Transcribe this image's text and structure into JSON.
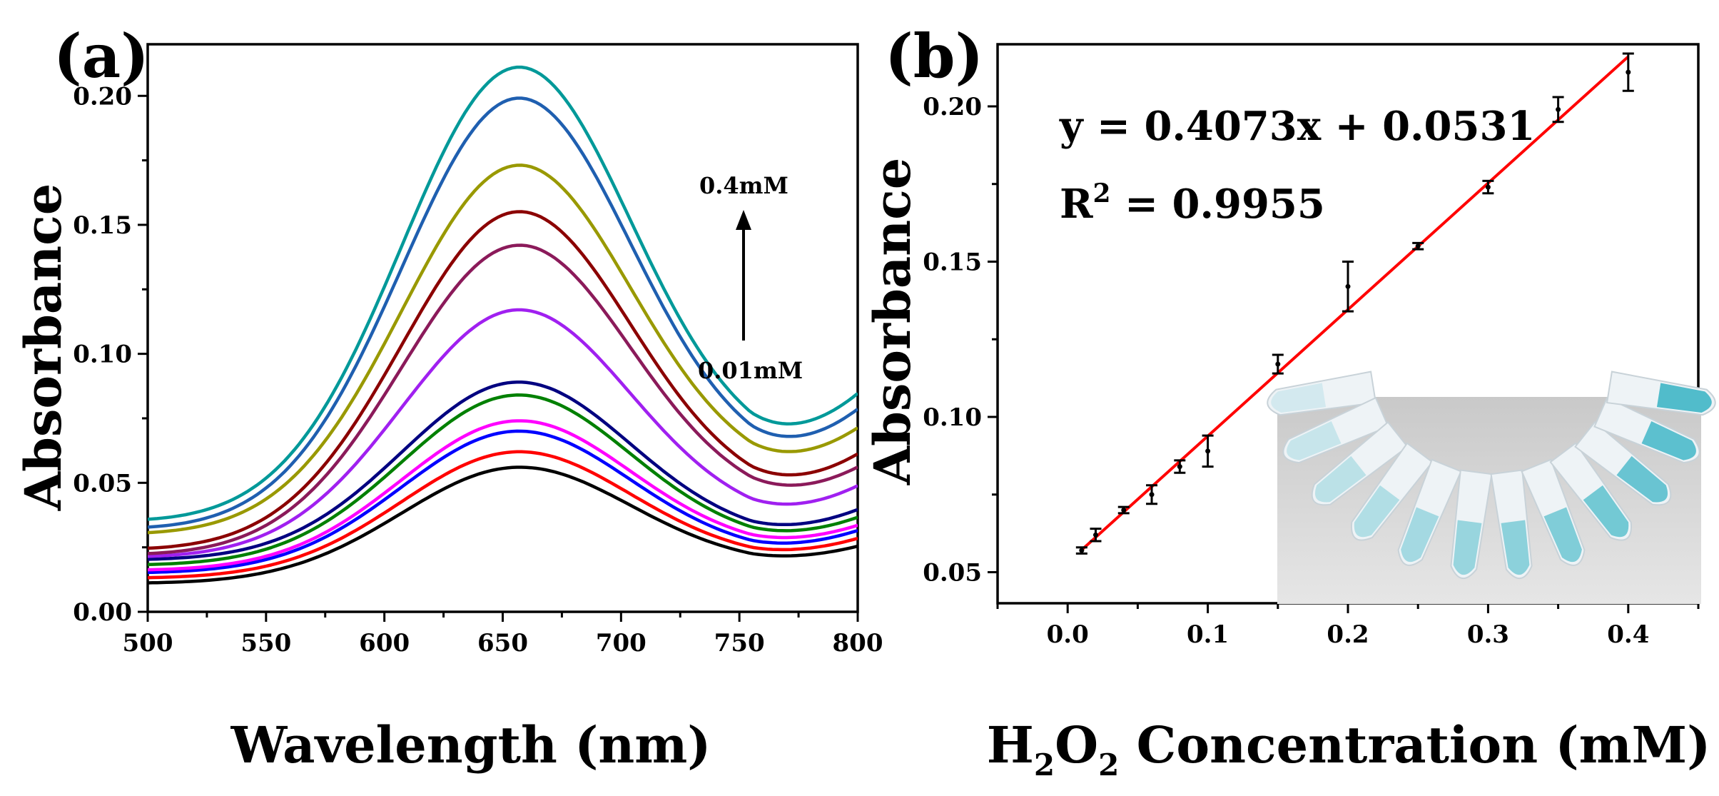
{
  "panels": {
    "a": {
      "label": "(a)",
      "chart_data": {
        "type": "line",
        "title": "",
        "xlabel": "Wavelength (nm)",
        "ylabel": "Absorbance",
        "xlim": [
          500,
          800
        ],
        "ylim": [
          0,
          0.22
        ],
        "x_ticks": [
          "500",
          "550",
          "600",
          "650",
          "700",
          "750",
          "800"
        ],
        "y_ticks": [
          "0.00",
          "0.05",
          "0.10",
          "0.15",
          "0.20"
        ],
        "grid": false,
        "peak_x": 655,
        "min_x": 755,
        "annotations": {
          "top": "0.4mM",
          "bottom": "0.01mM"
        },
        "series": [
          {
            "color": "#000000",
            "points": {
              "500": 0.011,
              "655": 0.056,
              "755": 0.018,
              "800": 0.025
            }
          },
          {
            "color": "#ff0000",
            "points": {
              "500": 0.013,
              "655": 0.062,
              "755": 0.02,
              "800": 0.028
            }
          },
          {
            "color": "#0000ff",
            "points": {
              "500": 0.015,
              "655": 0.07,
              "755": 0.022,
              "800": 0.031
            }
          },
          {
            "color": "#ff00ff",
            "points": {
              "500": 0.016,
              "655": 0.074,
              "755": 0.024,
              "800": 0.033
            }
          },
          {
            "color": "#008000",
            "points": {
              "500": 0.018,
              "655": 0.084,
              "755": 0.026,
              "800": 0.036
            }
          },
          {
            "color": "#000080",
            "points": {
              "500": 0.02,
              "655": 0.089,
              "755": 0.028,
              "800": 0.039
            }
          },
          {
            "color": "#a020f0",
            "points": {
              "500": 0.021,
              "655": 0.117,
              "755": 0.034,
              "800": 0.048
            }
          },
          {
            "color": "#8b1a5a",
            "points": {
              "500": 0.022,
              "655": 0.142,
              "755": 0.04,
              "800": 0.055
            }
          },
          {
            "color": "#8b0000",
            "points": {
              "500": 0.024,
              "655": 0.155,
              "755": 0.043,
              "800": 0.06
            }
          },
          {
            "color": "#999900",
            "points": {
              "500": 0.03,
              "655": 0.173,
              "755": 0.051,
              "800": 0.07
            }
          },
          {
            "color": "#1f5fb0",
            "points": {
              "500": 0.032,
              "655": 0.199,
              "755": 0.055,
              "800": 0.077
            }
          },
          {
            "color": "#009999",
            "points": {
              "500": 0.035,
              "655": 0.211,
              "755": 0.059,
              "800": 0.083
            }
          }
        ]
      }
    },
    "b": {
      "label": "(b)",
      "chart_data": {
        "type": "scatter",
        "title": "",
        "xlabel": "H2O2 Concentration (mM)",
        "xlabel_parts": [
          "H",
          "2",
          "O",
          "2",
          " Concentration (mM)"
        ],
        "ylabel": "Absorbance",
        "xlim": [
          -0.05,
          0.45
        ],
        "ylim": [
          0.04,
          0.22
        ],
        "x_ticks": [
          "0.0",
          "0.1",
          "0.2",
          "0.3",
          "0.4"
        ],
        "y_ticks": [
          "0.05",
          "0.10",
          "0.15",
          "0.20"
        ],
        "grid": false,
        "equation": "y = 0.4073x + 0.0531",
        "r2_prefix": "R",
        "r2_sup": "2",
        "r2_value": " = 0.9955",
        "fit": {
          "slope": 0.4073,
          "intercept": 0.0531,
          "color": "#ff0000"
        },
        "points": [
          {
            "x": 0.01,
            "y": 0.057,
            "err": 0.001
          },
          {
            "x": 0.02,
            "y": 0.062,
            "err": 0.002
          },
          {
            "x": 0.04,
            "y": 0.07,
            "err": 0.001
          },
          {
            "x": 0.06,
            "y": 0.075,
            "err": 0.003
          },
          {
            "x": 0.08,
            "y": 0.084,
            "err": 0.002
          },
          {
            "x": 0.1,
            "y": 0.089,
            "err": 0.005
          },
          {
            "x": 0.15,
            "y": 0.117,
            "err": 0.003
          },
          {
            "x": 0.2,
            "y": 0.142,
            "err": 0.008
          },
          {
            "x": 0.25,
            "y": 0.155,
            "err": 0.001
          },
          {
            "x": 0.3,
            "y": 0.174,
            "err": 0.002
          },
          {
            "x": 0.35,
            "y": 0.199,
            "err": 0.004
          },
          {
            "x": 0.4,
            "y": 0.211,
            "err": 0.006
          }
        ],
        "inset": {
          "description": "photo of tubes",
          "colors": {
            "background": "#d8d8d8",
            "tube": "#eef3f6",
            "solution": "#3fb6c6"
          }
        }
      }
    }
  }
}
